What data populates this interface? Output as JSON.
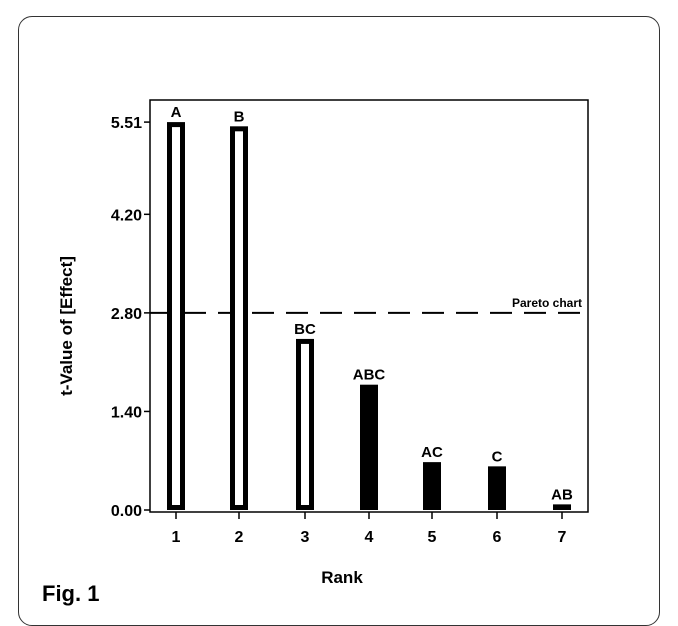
{
  "figure": {
    "caption": "Fig. 1"
  },
  "chart_data": {
    "type": "bar",
    "title": "",
    "xlabel": "Rank",
    "ylabel": "t-Value of [Effect]",
    "categories": [
      "1",
      "2",
      "3",
      "4",
      "5",
      "6",
      "7"
    ],
    "bar_labels": [
      "A",
      "B",
      "BC",
      "ABC",
      "AC",
      "C",
      "AB"
    ],
    "values": [
      5.51,
      5.45,
      2.43,
      1.78,
      0.68,
      0.62,
      0.08
    ],
    "bar_fill": [
      "hollow",
      "hollow",
      "hollow",
      "solid",
      "solid",
      "solid",
      "solid"
    ],
    "yticks": [
      0.0,
      1.4,
      2.8,
      4.2,
      5.51
    ],
    "ytick_labels": [
      "0.00",
      "1.40",
      "2.80",
      "4.20",
      "5.51"
    ],
    "ylim": [
      0,
      5.8
    ],
    "reference_line": {
      "value": 2.8,
      "label": "Pareto chart",
      "style": "dashed"
    },
    "grid": false,
    "colors": {
      "bar": "#000000",
      "hollow_fill": "#ffffff",
      "axis": "#000000"
    }
  }
}
